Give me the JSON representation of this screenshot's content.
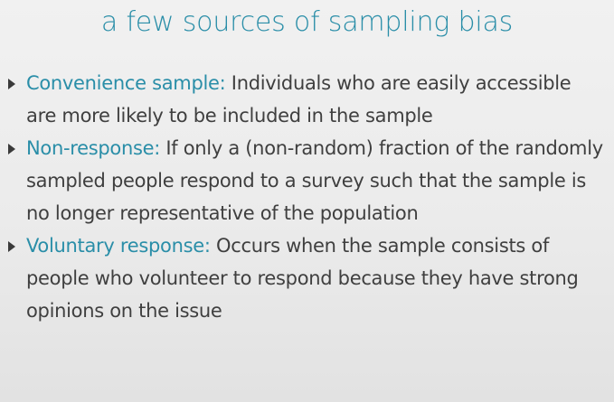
{
  "slide": {
    "title": "a few sources of sampling bias",
    "bullets": [
      {
        "term": "Convenience sample:",
        "text": " Individuals who are easily accessible are more likely to be included in the sample"
      },
      {
        "term": "Non-response:",
        "text": " If only a (non-random) fraction of the randomly sampled people respond to a survey such that the sample is no longer representative of the population"
      },
      {
        "term": "Voluntary response:",
        "text": " Occurs when the sample consists of people who volunteer to respond because they have strong opinions on the issue"
      }
    ]
  },
  "colors": {
    "accent": "#2a8ea8",
    "body_text": "#3f3f3f",
    "background": "#ececec"
  },
  "icons": {
    "bullet_marker": "triangle-right-icon"
  }
}
